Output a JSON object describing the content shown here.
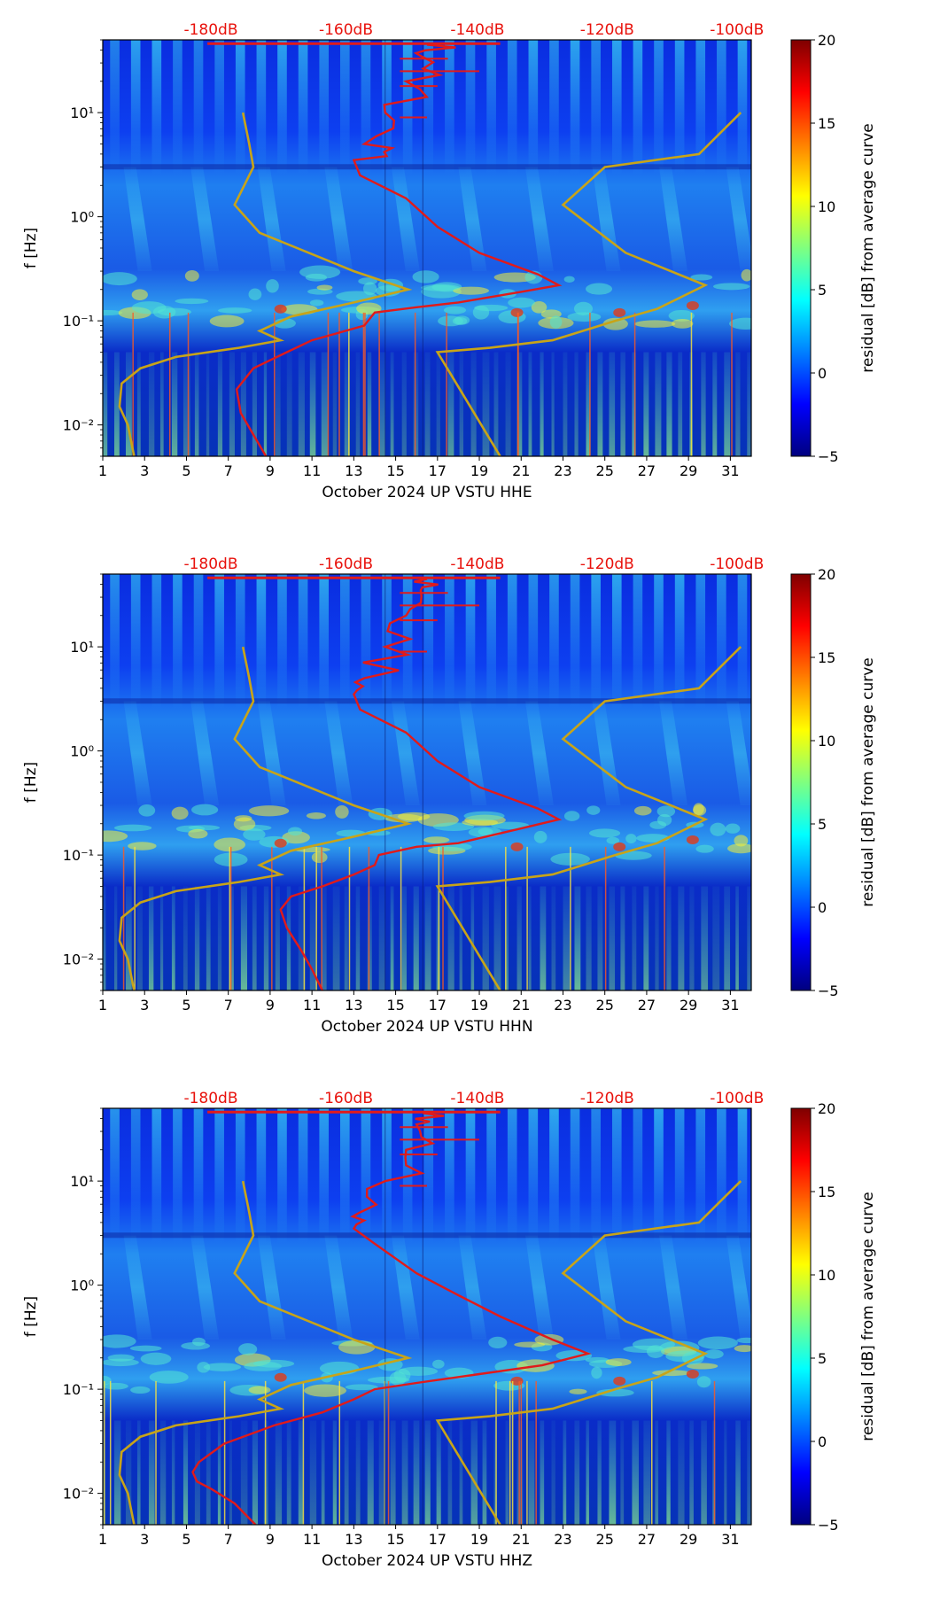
{
  "chart_data": [
    {
      "type": "heatmap",
      "xlabel": "October 2024 UP VSTU  HHE",
      "ylabel": "f [Hz]",
      "xlim": [
        1,
        32
      ],
      "ylim": [
        0.005,
        50
      ],
      "yscale": "log",
      "x_ticks": [
        "1",
        "3",
        "5",
        "7",
        "9",
        "11",
        "13",
        "15",
        "17",
        "19",
        "21",
        "23",
        "25",
        "27",
        "29",
        "31"
      ],
      "y_ticks": [
        "10⁻²",
        "10⁻¹",
        "10⁰",
        "10¹"
      ],
      "top_axis_labels": [
        "-180dB",
        "-160dB",
        "-140dB",
        "-120dB",
        "-100dB"
      ],
      "colorbar": {
        "label": "residual [dB] from average curve",
        "min": -5,
        "max": 20,
        "ticks": [
          "−5",
          "0",
          "5",
          "10",
          "15",
          "20"
        ]
      },
      "psd_curve": {
        "name": "average PSD",
        "points": [
          [
            8.8,
            0.005
          ],
          [
            7.6,
            0.013
          ],
          [
            7.4,
            0.022
          ],
          [
            8.2,
            0.035
          ],
          [
            9.8,
            0.05
          ],
          [
            11,
            0.065
          ],
          [
            13.5,
            0.09
          ],
          [
            14,
            0.12
          ],
          [
            16,
            0.135
          ],
          [
            18,
            0.15
          ],
          [
            21,
            0.19
          ],
          [
            22.8,
            0.22
          ],
          [
            21.8,
            0.28
          ],
          [
            19,
            0.45
          ],
          [
            17,
            0.8
          ],
          [
            15.5,
            1.5
          ],
          [
            13.3,
            2.5
          ],
          [
            13,
            3.5
          ],
          [
            13.5,
            5
          ],
          [
            14.5,
            10
          ],
          [
            15.5,
            20
          ],
          [
            16.2,
            35
          ],
          [
            16.5,
            45
          ]
        ]
      },
      "noise_models": [
        {
          "name": "low noise model",
          "points": [
            [
              2.5,
              0.005
            ],
            [
              2.2,
              0.01
            ],
            [
              1.8,
              0.015
            ],
            [
              1.9,
              0.025
            ],
            [
              2.8,
              0.035
            ],
            [
              4.5,
              0.045
            ],
            [
              7.5,
              0.055
            ],
            [
              9.5,
              0.065
            ],
            [
              8.5,
              0.08
            ],
            [
              10,
              0.11
            ],
            [
              13,
              0.15
            ],
            [
              15.6,
              0.2
            ],
            [
              13,
              0.3
            ],
            [
              8.5,
              0.7
            ],
            [
              7.3,
              1.3
            ],
            [
              8.2,
              3
            ],
            [
              8,
              5
            ],
            [
              7.7,
              10
            ]
          ]
        },
        {
          "name": "high noise model",
          "points": [
            [
              20,
              0.005
            ],
            [
              17,
              0.05
            ],
            [
              19.5,
              0.055
            ],
            [
              22.5,
              0.065
            ],
            [
              25.5,
              0.1
            ],
            [
              27.5,
              0.13
            ],
            [
              29.8,
              0.22
            ],
            [
              26,
              0.45
            ],
            [
              23,
              1.3
            ],
            [
              25,
              3
            ],
            [
              29.5,
              4
            ],
            [
              31.5,
              10
            ]
          ]
        }
      ]
    },
    {
      "type": "heatmap",
      "xlabel": "October 2024 UP VSTU  HHN",
      "ylabel": "f [Hz]",
      "xlim": [
        1,
        32
      ],
      "ylim": [
        0.005,
        50
      ],
      "yscale": "log",
      "x_ticks": [
        "1",
        "3",
        "5",
        "7",
        "9",
        "11",
        "13",
        "15",
        "17",
        "19",
        "21",
        "23",
        "25",
        "27",
        "29",
        "31"
      ],
      "y_ticks": [
        "10⁻²",
        "10⁻¹",
        "10⁰",
        "10¹"
      ],
      "top_axis_labels": [
        "-180dB",
        "-160dB",
        "-140dB",
        "-120dB",
        "-100dB"
      ],
      "colorbar": {
        "label": "residual [dB] from average curve",
        "min": -5,
        "max": 20,
        "ticks": [
          "−5",
          "0",
          "5",
          "10",
          "15",
          "20"
        ]
      },
      "psd_curve": {
        "name": "average PSD",
        "points": [
          [
            11.5,
            0.005
          ],
          [
            11,
            0.008
          ],
          [
            10.5,
            0.012
          ],
          [
            9.8,
            0.02
          ],
          [
            9.5,
            0.03
          ],
          [
            10,
            0.04
          ],
          [
            11.5,
            0.05
          ],
          [
            13,
            0.065
          ],
          [
            14,
            0.08
          ],
          [
            14.2,
            0.1
          ],
          [
            16,
            0.12
          ],
          [
            18,
            0.13
          ],
          [
            21,
            0.18
          ],
          [
            22.8,
            0.22
          ],
          [
            21.8,
            0.28
          ],
          [
            19,
            0.45
          ],
          [
            17,
            0.8
          ],
          [
            15.5,
            1.5
          ],
          [
            13.3,
            2.5
          ],
          [
            13,
            3.5
          ],
          [
            13.5,
            5
          ],
          [
            14.5,
            10
          ],
          [
            15.5,
            20
          ],
          [
            16.2,
            35
          ],
          [
            16.5,
            45
          ]
        ]
      },
      "noise_models": [
        {
          "name": "low noise model",
          "points": [
            [
              2.5,
              0.005
            ],
            [
              2.2,
              0.01
            ],
            [
              1.8,
              0.015
            ],
            [
              1.9,
              0.025
            ],
            [
              2.8,
              0.035
            ],
            [
              4.5,
              0.045
            ],
            [
              7.5,
              0.055
            ],
            [
              9.5,
              0.065
            ],
            [
              8.5,
              0.08
            ],
            [
              10,
              0.11
            ],
            [
              13,
              0.15
            ],
            [
              15.6,
              0.2
            ],
            [
              13,
              0.3
            ],
            [
              8.5,
              0.7
            ],
            [
              7.3,
              1.3
            ],
            [
              8.2,
              3
            ],
            [
              8,
              5
            ],
            [
              7.7,
              10
            ]
          ]
        },
        {
          "name": "high noise model",
          "points": [
            [
              20,
              0.005
            ],
            [
              17,
              0.05
            ],
            [
              19.5,
              0.055
            ],
            [
              22.5,
              0.065
            ],
            [
              25.5,
              0.1
            ],
            [
              27.5,
              0.13
            ],
            [
              29.8,
              0.22
            ],
            [
              26,
              0.45
            ],
            [
              23,
              1.3
            ],
            [
              25,
              3
            ],
            [
              29.5,
              4
            ],
            [
              31.5,
              10
            ]
          ]
        }
      ]
    },
    {
      "type": "heatmap",
      "xlabel": "October 2024 UP VSTU  HHZ",
      "ylabel": "f [Hz]",
      "xlim": [
        1,
        32
      ],
      "ylim": [
        0.005,
        50
      ],
      "yscale": "log",
      "x_ticks": [
        "1",
        "3",
        "5",
        "7",
        "9",
        "11",
        "13",
        "15",
        "17",
        "19",
        "21",
        "23",
        "25",
        "27",
        "29",
        "31"
      ],
      "y_ticks": [
        "10⁻²",
        "10⁻¹",
        "10⁰",
        "10¹"
      ],
      "top_axis_labels": [
        "-180dB",
        "-160dB",
        "-140dB",
        "-120dB",
        "-100dB"
      ],
      "colorbar": {
        "label": "residual [dB] from average curve",
        "min": -5,
        "max": 20,
        "ticks": [
          "−5",
          "0",
          "5",
          "10",
          "15",
          "20"
        ]
      },
      "psd_curve": {
        "name": "average PSD",
        "points": [
          [
            8.3,
            0.005
          ],
          [
            7.3,
            0.008
          ],
          [
            6.2,
            0.011
          ],
          [
            5.5,
            0.013
          ],
          [
            5.3,
            0.016
          ],
          [
            5.6,
            0.02
          ],
          [
            6.8,
            0.03
          ],
          [
            9.2,
            0.045
          ],
          [
            11.5,
            0.06
          ],
          [
            13,
            0.08
          ],
          [
            14,
            0.1
          ],
          [
            16,
            0.115
          ],
          [
            19,
            0.14
          ],
          [
            22,
            0.17
          ],
          [
            24.2,
            0.22
          ],
          [
            22.5,
            0.3
          ],
          [
            20,
            0.5
          ],
          [
            18,
            0.8
          ],
          [
            16,
            1.3
          ],
          [
            14,
            2.5
          ],
          [
            13,
            3.5
          ],
          [
            13.3,
            5
          ],
          [
            14.5,
            10
          ],
          [
            15.5,
            20
          ],
          [
            16,
            35
          ],
          [
            16.3,
            45
          ]
        ]
      },
      "noise_models": [
        {
          "name": "low noise model",
          "points": [
            [
              2.5,
              0.005
            ],
            [
              2.2,
              0.01
            ],
            [
              1.8,
              0.015
            ],
            [
              1.9,
              0.025
            ],
            [
              2.8,
              0.035
            ],
            [
              4.5,
              0.045
            ],
            [
              7.5,
              0.055
            ],
            [
              9.5,
              0.065
            ],
            [
              8.5,
              0.08
            ],
            [
              10,
              0.11
            ],
            [
              13,
              0.15
            ],
            [
              15.6,
              0.2
            ],
            [
              13,
              0.3
            ],
            [
              8.5,
              0.7
            ],
            [
              7.3,
              1.3
            ],
            [
              8.2,
              3
            ],
            [
              8,
              5
            ],
            [
              7.7,
              10
            ]
          ]
        },
        {
          "name": "high noise model",
          "points": [
            [
              20,
              0.005
            ],
            [
              17,
              0.05
            ],
            [
              19.5,
              0.055
            ],
            [
              22.5,
              0.065
            ],
            [
              25.5,
              0.1
            ],
            [
              27.5,
              0.13
            ],
            [
              29.8,
              0.22
            ],
            [
              26,
              0.45
            ],
            [
              23,
              1.3
            ],
            [
              25,
              3
            ],
            [
              29.5,
              4
            ],
            [
              31.5,
              10
            ]
          ]
        }
      ]
    }
  ],
  "colors": {
    "psd_curve": "#e11a1a",
    "noise_model": "#c8a418",
    "top_axis_text": "#e8120c",
    "axis": "#000000",
    "colormap": [
      "#00007f",
      "#0000ff",
      "#007fff",
      "#00ffff",
      "#7fff7f",
      "#ffff00",
      "#ff7f00",
      "#ff0000",
      "#7f0000"
    ]
  }
}
